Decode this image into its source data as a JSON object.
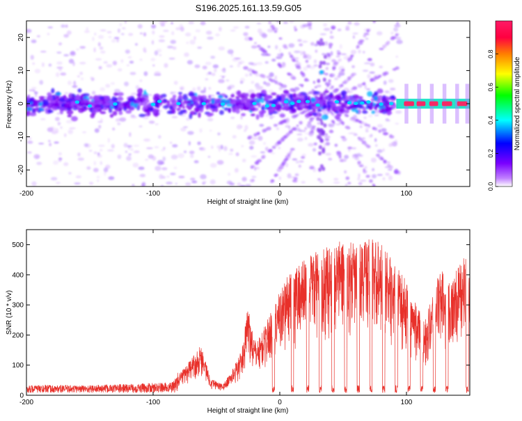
{
  "figure": {
    "title": "S196.2025.161.13.59.G05"
  },
  "chart_data": [
    {
      "type": "heatmap",
      "xlabel": "Height of straight line (km)",
      "ylabel": "Frequency (Hz)",
      "xlim": [
        -200,
        150
      ],
      "ylim": [
        -25,
        25
      ],
      "xticks": [
        -200,
        -100,
        0,
        100
      ],
      "yticks": [
        -20,
        -10,
        0,
        10,
        20
      ],
      "colorbar": {
        "label": "Normalized spectral amplitude",
        "range": [
          0,
          1
        ],
        "ticks": [
          0,
          0.2,
          0.4,
          0.6,
          0.8
        ],
        "tick_labels": [
          "0.0",
          "0.2",
          "0.4",
          "0.6",
          "0.8"
        ],
        "colors": [
          "#ffffff",
          "#7a00ff",
          "#0000ff",
          "#00ffff",
          "#00ff00",
          "#ffff00",
          "#ff7f00",
          "#ff0040",
          "#ff1a66"
        ]
      },
      "features": {
        "spectral_band_center_hz": 0,
        "band_halfwidth_hz": 4,
        "fan_center_km": 33,
        "strong_peaks_km": [
          100,
          110,
          120,
          130,
          140,
          148
        ]
      }
    },
    {
      "type": "line",
      "xlabel": "Height of straight line (km)",
      "ylabel": "SNR (10 * v/v)",
      "xlim": [
        -200,
        150
      ],
      "ylim": [
        0,
        550
      ],
      "xticks": [
        -200,
        -100,
        0,
        100
      ],
      "yticks": [
        0,
        100,
        200,
        300,
        400,
        500
      ],
      "color": "#e8302a",
      "envelope": [
        [
          -200,
          20
        ],
        [
          -150,
          20
        ],
        [
          -110,
          25
        ],
        [
          -95,
          28
        ],
        [
          -85,
          30
        ],
        [
          -78,
          80
        ],
        [
          -70,
          120
        ],
        [
          -62,
          170
        ],
        [
          -55,
          60
        ],
        [
          -45,
          35
        ],
        [
          -38,
          80
        ],
        [
          -30,
          150
        ],
        [
          -25,
          300
        ],
        [
          -20,
          180
        ],
        [
          -15,
          200
        ],
        [
          -10,
          250
        ],
        [
          -5,
          300
        ],
        [
          0,
          350
        ],
        [
          5,
          390
        ],
        [
          10,
          420
        ],
        [
          20,
          460
        ],
        [
          30,
          480
        ],
        [
          40,
          500
        ],
        [
          50,
          520
        ],
        [
          60,
          500
        ],
        [
          70,
          530
        ],
        [
          80,
          510
        ],
        [
          90,
          440
        ],
        [
          100,
          380
        ],
        [
          105,
          320
        ],
        [
          110,
          290
        ],
        [
          115,
          260
        ],
        [
          120,
          330
        ],
        [
          125,
          400
        ],
        [
          130,
          420
        ],
        [
          135,
          380
        ],
        [
          140,
          420
        ],
        [
          145,
          460
        ],
        [
          150,
          450
        ]
      ],
      "dropouts_km": [
        -5,
        10,
        22,
        32,
        42,
        52,
        62,
        72,
        82,
        92,
        102,
        112,
        122,
        132,
        148
      ]
    }
  ]
}
